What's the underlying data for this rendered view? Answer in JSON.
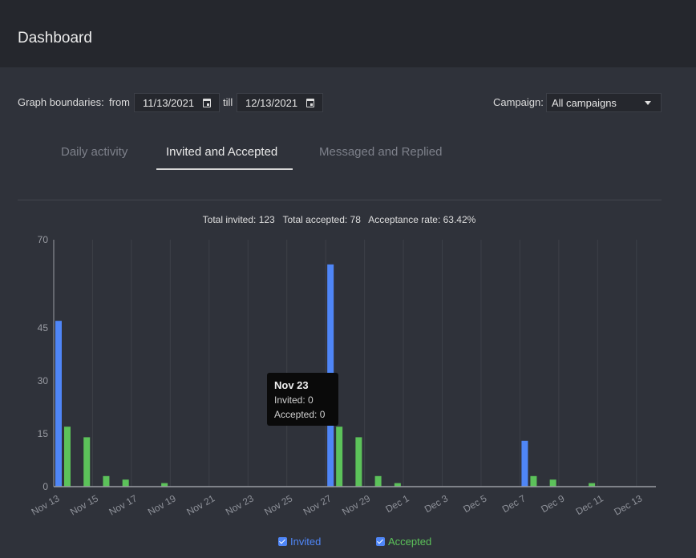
{
  "header": {
    "title": "Dashboard"
  },
  "controls": {
    "graph_boundaries_label": "Graph boundaries:",
    "from_label": "from",
    "from_value": "11/13/2021",
    "till_label": "till",
    "till_value": "12/13/2021",
    "campaign_label": "Campaign:",
    "campaign_value": "All campaigns"
  },
  "tabs": [
    {
      "label": "Daily activity",
      "active": false
    },
    {
      "label": "Invited and Accepted",
      "active": true
    },
    {
      "label": "Messaged and Replied",
      "active": false
    }
  ],
  "summary": "Total invited: 123   Total accepted: 78   Acceptance rate: 63.42%",
  "tooltip": {
    "title": "Nov 23",
    "invited": "Invited: 0",
    "accepted": "Accepted: 0"
  },
  "legend": [
    {
      "label": "Invited",
      "color": "#4f86f7"
    },
    {
      "label": "Accepted",
      "color": "#5cc25a"
    }
  ],
  "chart_data": {
    "type": "bar",
    "title": "",
    "xlabel": "",
    "ylabel": "",
    "ylim": [
      0,
      70
    ],
    "yticks": [
      0,
      15,
      30,
      45,
      70
    ],
    "categories": [
      "Nov 13",
      "Nov 14",
      "Nov 15",
      "Nov 16",
      "Nov 17",
      "Nov 18",
      "Nov 19",
      "Nov 20",
      "Nov 21",
      "Nov 22",
      "Nov 23",
      "Nov 24",
      "Nov 25",
      "Nov 26",
      "Nov 27",
      "Nov 28",
      "Nov 29",
      "Nov 30",
      "Dec 1",
      "Dec 2",
      "Dec 3",
      "Dec 4",
      "Dec 5",
      "Dec 6",
      "Dec 7",
      "Dec 8",
      "Dec 9",
      "Dec 10",
      "Dec 11",
      "Dec 12",
      "Dec 13"
    ],
    "tick_labels": [
      "Nov 13",
      "Nov 15",
      "Nov 17",
      "Nov 19",
      "Nov 21",
      "Nov 23",
      "Nov 25",
      "Nov 27",
      "Nov 29",
      "Dec 1",
      "Dec 3",
      "Dec 5",
      "Dec 7",
      "Dec 9",
      "Dec 11",
      "Dec 13"
    ],
    "series": [
      {
        "name": "Invited",
        "color": "#4f86f7",
        "values": [
          47,
          0,
          0,
          0,
          0,
          0,
          0,
          0,
          0,
          0,
          0,
          0,
          0,
          0,
          63,
          0,
          0,
          0,
          0,
          0,
          0,
          0,
          0,
          0,
          13,
          0,
          0,
          0,
          0,
          0,
          0
        ]
      },
      {
        "name": "Accepted",
        "color": "#5cc25a",
        "values": [
          17,
          14,
          3,
          2,
          0,
          1,
          0,
          0,
          0,
          0,
          0,
          0,
          0,
          0,
          17,
          14,
          3,
          1,
          0,
          0,
          0,
          0,
          0,
          0,
          3,
          2,
          0,
          1,
          0,
          0,
          0
        ]
      }
    ],
    "grid": true
  }
}
